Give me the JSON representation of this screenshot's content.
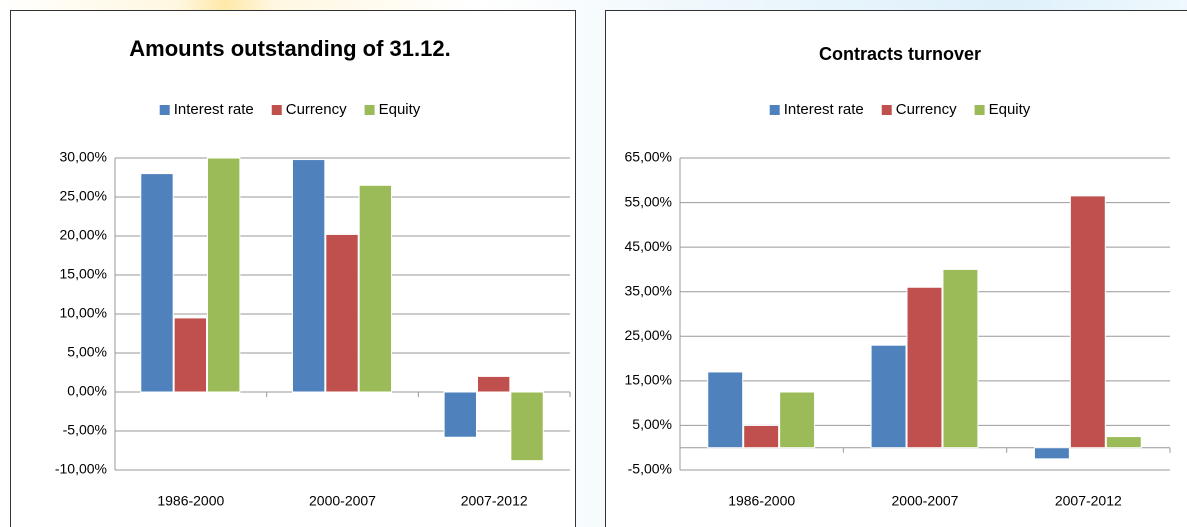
{
  "chart_data": [
    {
      "type": "bar",
      "title": "Amounts outstanding of 31.12.",
      "categories": [
        "1986-2000",
        "2000-2007",
        "2007-2012"
      ],
      "series": [
        {
          "name": "Interest rate",
          "color": "#4f81bd",
          "values": [
            28,
            29.8,
            -5.8
          ]
        },
        {
          "name": "Currency",
          "color": "#c0504d",
          "values": [
            9.5,
            20.2,
            2
          ]
        },
        {
          "name": "Equity",
          "color": "#9bbb59",
          "values": [
            30,
            26.5,
            -8.8
          ]
        }
      ],
      "ylim": [
        -10,
        30
      ],
      "yticks": [
        {
          "value": -10,
          "label": "-10,00%"
        },
        {
          "value": -5,
          "label": "-5,00%"
        },
        {
          "value": 0,
          "label": "0,00%"
        },
        {
          "value": 5,
          "label": "5,00%"
        },
        {
          "value": 10,
          "label": "10,00%"
        },
        {
          "value": 15,
          "label": "15,00%"
        },
        {
          "value": 20,
          "label": "20,00%"
        },
        {
          "value": 25,
          "label": "25,00%"
        },
        {
          "value": 30,
          "label": "30,00%"
        }
      ],
      "grid": true,
      "legend": "top"
    },
    {
      "type": "bar",
      "title": "Contracts turnover",
      "categories": [
        "1986-2000",
        "2000-2007",
        "2007-2012"
      ],
      "series": [
        {
          "name": "Interest rate",
          "color": "#4f81bd",
          "values": [
            17,
            23,
            -2.5
          ]
        },
        {
          "name": "Currency",
          "color": "#c0504d",
          "values": [
            5,
            36,
            56.5
          ]
        },
        {
          "name": "Equity",
          "color": "#9bbb59",
          "values": [
            12.5,
            40,
            2.5
          ]
        }
      ],
      "ylim": [
        -5,
        65
      ],
      "yticks": [
        {
          "value": -5,
          "label": "-5,00%"
        },
        {
          "value": 5,
          "label": "5,00%"
        },
        {
          "value": 15,
          "label": "15,00%"
        },
        {
          "value": 25,
          "label": "25,00%"
        },
        {
          "value": 35,
          "label": "35,00%"
        },
        {
          "value": 45,
          "label": "45,00%"
        },
        {
          "value": 55,
          "label": "55,00%"
        },
        {
          "value": 65,
          "label": "65,00%"
        }
      ],
      "grid": true,
      "legend": "top"
    }
  ]
}
